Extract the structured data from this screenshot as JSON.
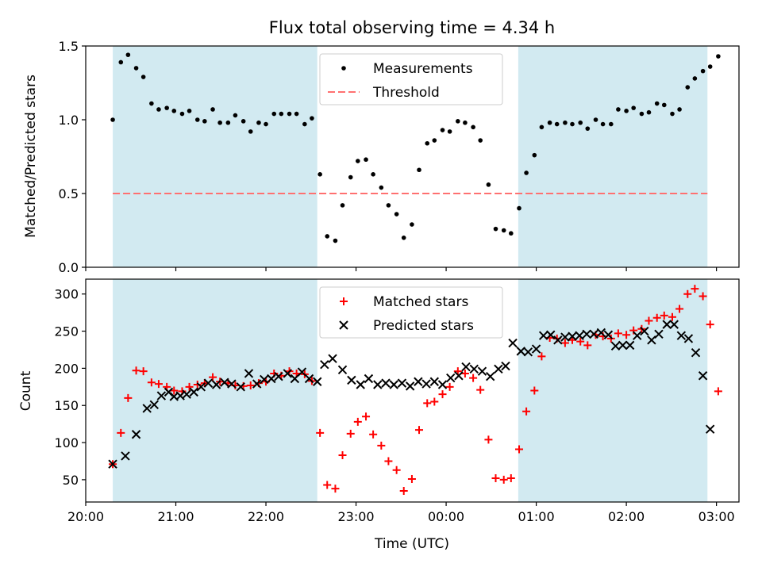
{
  "figure": {
    "title": "Flux total observing time = 4.34 h",
    "xlabel": "Time (UTC)",
    "x_tick_labels": [
      "20:00",
      "21:00",
      "22:00",
      "23:00",
      "00:00",
      "01:00",
      "02:00",
      "03:00"
    ]
  },
  "colors": {
    "shade": "#add8e6",
    "measurements": "#000000",
    "threshold": "#ff7070",
    "matched": "#ff0000",
    "predicted": "#000000"
  },
  "chart_data": [
    {
      "type": "scatter",
      "title": "Flux total observing time = 4.34 h",
      "xlabel": "",
      "ylabel": "Matched/Predicted stars",
      "x_unit": "hours since 20:00 UTC",
      "xlim": [
        20.0,
        27.25
      ],
      "ylim": [
        0,
        1.5
      ],
      "y_ticks": [
        0.0,
        0.5,
        1.0,
        1.5
      ],
      "y_tick_labels": [
        "0.0",
        "0.5",
        "1.0",
        "1.5"
      ],
      "legend_position": "top-center",
      "legend": [
        "Measurements",
        "Threshold"
      ],
      "shaded_spans": [
        [
          20.3,
          22.57
        ],
        [
          24.8,
          26.9
        ]
      ],
      "threshold": 0.5,
      "series": [
        {
          "name": "Measurements",
          "marker": "dot",
          "points": [
            [
              20.3,
              1.0
            ],
            [
              20.39,
              1.39
            ],
            [
              20.47,
              1.44
            ],
            [
              20.56,
              1.35
            ],
            [
              20.64,
              1.29
            ],
            [
              20.73,
              1.11
            ],
            [
              20.81,
              1.07
            ],
            [
              20.9,
              1.08
            ],
            [
              20.98,
              1.06
            ],
            [
              21.07,
              1.04
            ],
            [
              21.15,
              1.06
            ],
            [
              21.24,
              1.0
            ],
            [
              21.32,
              0.99
            ],
            [
              21.41,
              1.07
            ],
            [
              21.49,
              0.98
            ],
            [
              21.58,
              0.98
            ],
            [
              21.66,
              1.03
            ],
            [
              21.75,
              0.99
            ],
            [
              21.83,
              0.92
            ],
            [
              21.92,
              0.98
            ],
            [
              22.0,
              0.97
            ],
            [
              22.09,
              1.04
            ],
            [
              22.17,
              1.04
            ],
            [
              22.26,
              1.04
            ],
            [
              22.34,
              1.04
            ],
            [
              22.43,
              0.97
            ],
            [
              22.51,
              1.01
            ],
            [
              22.6,
              0.63
            ],
            [
              22.68,
              0.21
            ],
            [
              22.77,
              0.18
            ],
            [
              22.85,
              0.42
            ],
            [
              22.94,
              0.61
            ],
            [
              23.02,
              0.72
            ],
            [
              23.11,
              0.73
            ],
            [
              23.19,
              0.63
            ],
            [
              23.28,
              0.54
            ],
            [
              23.36,
              0.42
            ],
            [
              23.45,
              0.36
            ],
            [
              23.53,
              0.2
            ],
            [
              23.62,
              0.29
            ],
            [
              23.7,
              0.66
            ],
            [
              23.79,
              0.84
            ],
            [
              23.87,
              0.86
            ],
            [
              23.96,
              0.93
            ],
            [
              24.04,
              0.92
            ],
            [
              24.13,
              0.99
            ],
            [
              24.21,
              0.98
            ],
            [
              24.3,
              0.95
            ],
            [
              24.38,
              0.86
            ],
            [
              24.47,
              0.56
            ],
            [
              24.55,
              0.26
            ],
            [
              24.64,
              0.25
            ],
            [
              24.72,
              0.23
            ],
            [
              24.81,
              0.4
            ],
            [
              24.89,
              0.64
            ],
            [
              24.98,
              0.76
            ],
            [
              25.06,
              0.95
            ],
            [
              25.15,
              0.98
            ],
            [
              25.23,
              0.97
            ],
            [
              25.32,
              0.98
            ],
            [
              25.4,
              0.97
            ],
            [
              25.49,
              0.98
            ],
            [
              25.57,
              0.94
            ],
            [
              25.66,
              1.0
            ],
            [
              25.74,
              0.97
            ],
            [
              25.83,
              0.97
            ],
            [
              25.91,
              1.07
            ],
            [
              26.0,
              1.06
            ],
            [
              26.08,
              1.08
            ],
            [
              26.17,
              1.04
            ],
            [
              26.25,
              1.05
            ],
            [
              26.34,
              1.11
            ],
            [
              26.42,
              1.1
            ],
            [
              26.51,
              1.04
            ],
            [
              26.59,
              1.07
            ],
            [
              26.68,
              1.22
            ],
            [
              26.76,
              1.28
            ],
            [
              26.85,
              1.33
            ],
            [
              26.93,
              1.36
            ],
            [
              27.02,
              1.43
            ]
          ]
        },
        {
          "name": "Threshold",
          "style": "dashed",
          "points": [
            [
              20.3,
              0.5
            ],
            [
              26.9,
              0.5
            ]
          ]
        }
      ]
    },
    {
      "type": "scatter",
      "title": "",
      "xlabel": "Time (UTC)",
      "ylabel": "Count",
      "x_unit": "hours since 20:00 UTC",
      "xlim": [
        20.0,
        27.25
      ],
      "ylim": [
        20,
        320
      ],
      "y_ticks": [
        50,
        100,
        150,
        200,
        250,
        300
      ],
      "x_ticks": [
        20,
        21,
        22,
        23,
        24,
        25,
        26,
        27
      ],
      "legend_position": "top-center",
      "legend": [
        "Matched stars",
        "Predicted stars"
      ],
      "shaded_spans": [
        [
          20.3,
          22.57
        ],
        [
          24.8,
          26.9
        ]
      ],
      "series": [
        {
          "name": "Matched stars",
          "marker": "plus",
          "points": [
            [
              20.3,
              71
            ],
            [
              20.39,
              113
            ],
            [
              20.47,
              160
            ],
            [
              20.56,
              197
            ],
            [
              20.64,
              196
            ],
            [
              20.73,
              181
            ],
            [
              20.81,
              179
            ],
            [
              20.9,
              175
            ],
            [
              20.98,
              170
            ],
            [
              21.07,
              169
            ],
            [
              21.15,
              175
            ],
            [
              21.24,
              178
            ],
            [
              21.32,
              180
            ],
            [
              21.41,
              188
            ],
            [
              21.49,
              182
            ],
            [
              21.58,
              180
            ],
            [
              21.66,
              177
            ],
            [
              21.75,
              176
            ],
            [
              21.83,
              177
            ],
            [
              21.92,
              180
            ],
            [
              22.0,
              182
            ],
            [
              22.09,
              193
            ],
            [
              22.17,
              190
            ],
            [
              22.26,
              196
            ],
            [
              22.34,
              193
            ],
            [
              22.43,
              192
            ],
            [
              22.51,
              183
            ],
            [
              22.6,
              113
            ],
            [
              22.68,
              43
            ],
            [
              22.77,
              38
            ],
            [
              22.85,
              83
            ],
            [
              22.94,
              112
            ],
            [
              23.02,
              128
            ],
            [
              23.11,
              135
            ],
            [
              23.19,
              111
            ],
            [
              23.28,
              96
            ],
            [
              23.36,
              75
            ],
            [
              23.45,
              63
            ],
            [
              23.53,
              35
            ],
            [
              23.62,
              51
            ],
            [
              23.7,
              117
            ],
            [
              23.79,
              153
            ],
            [
              23.87,
              155
            ],
            [
              23.96,
              165
            ],
            [
              24.04,
              175
            ],
            [
              24.13,
              196
            ],
            [
              24.21,
              193
            ],
            [
              24.3,
              187
            ],
            [
              24.38,
              171
            ],
            [
              24.47,
              104
            ],
            [
              24.55,
              52
            ],
            [
              24.64,
              50
            ],
            [
              24.72,
              52
            ],
            [
              24.81,
              91
            ],
            [
              24.89,
              142
            ],
            [
              24.98,
              170
            ],
            [
              25.06,
              216
            ],
            [
              25.15,
              241
            ],
            [
              25.23,
              240
            ],
            [
              25.32,
              234
            ],
            [
              25.4,
              238
            ],
            [
              25.49,
              236
            ],
            [
              25.57,
              231
            ],
            [
              25.66,
              245
            ],
            [
              25.74,
              243
            ],
            [
              25.83,
              240
            ],
            [
              25.91,
              247
            ],
            [
              26.0,
              245
            ],
            [
              26.08,
              251
            ],
            [
              26.17,
              253
            ],
            [
              26.25,
              264
            ],
            [
              26.34,
              268
            ],
            [
              26.42,
              271
            ],
            [
              26.51,
              269
            ],
            [
              26.59,
              280
            ],
            [
              26.68,
              300
            ],
            [
              26.76,
              307
            ],
            [
              26.85,
              297
            ],
            [
              26.93,
              259
            ],
            [
              27.02,
              169
            ]
          ]
        },
        {
          "name": "Predicted stars",
          "marker": "x",
          "points": [
            [
              20.3,
              71
            ],
            [
              20.44,
              82
            ],
            [
              20.56,
              111
            ],
            [
              20.68,
              146
            ],
            [
              20.76,
              151
            ],
            [
              20.84,
              163
            ],
            [
              20.92,
              168
            ],
            [
              20.98,
              162
            ],
            [
              21.05,
              163
            ],
            [
              21.12,
              165
            ],
            [
              21.2,
              168
            ],
            [
              21.28,
              175
            ],
            [
              21.36,
              180
            ],
            [
              21.45,
              178
            ],
            [
              21.54,
              181
            ],
            [
              21.62,
              179
            ],
            [
              21.72,
              175
            ],
            [
              21.81,
              193
            ],
            [
              21.9,
              179
            ],
            [
              21.98,
              185
            ],
            [
              22.06,
              186
            ],
            [
              22.14,
              189
            ],
            [
              22.24,
              193
            ],
            [
              22.32,
              186
            ],
            [
              22.4,
              195
            ],
            [
              22.48,
              186
            ],
            [
              22.57,
              182
            ],
            [
              22.65,
              205
            ],
            [
              22.74,
              213
            ],
            [
              22.85,
              198
            ],
            [
              22.95,
              184
            ],
            [
              23.05,
              178
            ],
            [
              23.14,
              186
            ],
            [
              23.24,
              178
            ],
            [
              23.33,
              180
            ],
            [
              23.42,
              178
            ],
            [
              23.51,
              180
            ],
            [
              23.6,
              176
            ],
            [
              23.69,
              182
            ],
            [
              23.78,
              179
            ],
            [
              23.87,
              182
            ],
            [
              23.96,
              178
            ],
            [
              24.05,
              187
            ],
            [
              24.14,
              190
            ],
            [
              24.22,
              202
            ],
            [
              24.31,
              199
            ],
            [
              24.4,
              196
            ],
            [
              24.49,
              189
            ],
            [
              24.58,
              199
            ],
            [
              24.66,
              203
            ],
            [
              24.74,
              234
            ],
            [
              24.83,
              223
            ],
            [
              24.91,
              222
            ],
            [
              25.0,
              226
            ],
            [
              25.08,
              244
            ],
            [
              25.16,
              245
            ],
            [
              25.24,
              238
            ],
            [
              25.32,
              242
            ],
            [
              25.4,
              243
            ],
            [
              25.48,
              244
            ],
            [
              25.56,
              246
            ],
            [
              25.64,
              246
            ],
            [
              25.72,
              248
            ],
            [
              25.8,
              245
            ],
            [
              25.88,
              230
            ],
            [
              25.96,
              231
            ],
            [
              26.04,
              231
            ],
            [
              26.12,
              244
            ],
            [
              26.2,
              250
            ],
            [
              26.28,
              238
            ],
            [
              26.36,
              246
            ],
            [
              26.45,
              259
            ],
            [
              26.53,
              259
            ],
            [
              26.61,
              244
            ],
            [
              26.69,
              240
            ],
            [
              26.77,
              221
            ],
            [
              26.85,
              190
            ],
            [
              26.93,
              118
            ]
          ]
        }
      ]
    }
  ]
}
